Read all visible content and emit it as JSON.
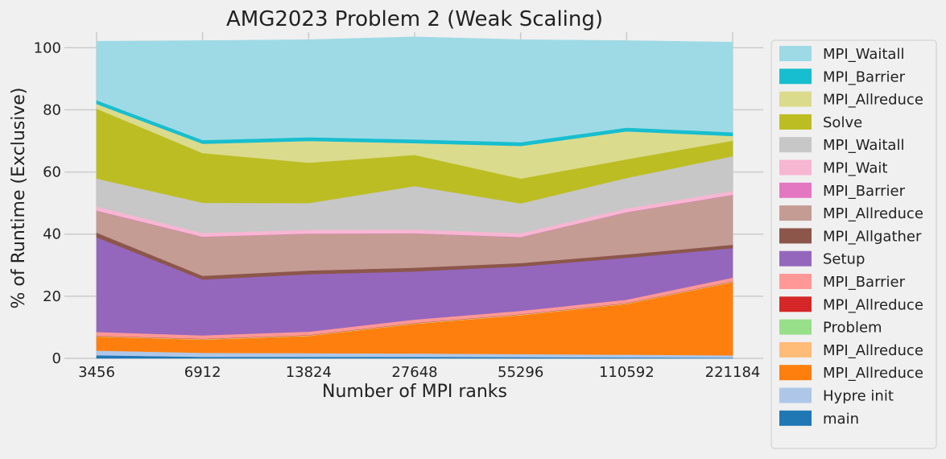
{
  "chart_data": {
    "type": "area",
    "stacked": true,
    "title": "AMG2023 Problem 2 (Weak Scaling)",
    "xlabel": "Number of MPI ranks",
    "ylabel": "% of Runtime (Exclusive)",
    "ylim": [
      0,
      105
    ],
    "yticks": [
      0,
      20,
      40,
      60,
      80,
      100
    ],
    "categories": [
      "3456",
      "6912",
      "13824",
      "27648",
      "55296",
      "110592",
      "221184"
    ],
    "grid": true,
    "legend_position": "outside-right",
    "series": [
      {
        "name": "main",
        "color": "#1f77b4",
        "values": [
          1.0,
          0.5,
          0.5,
          0.5,
          0.4,
          0.3,
          0.2
        ]
      },
      {
        "name": "Hypre init",
        "color": "#aec7e8",
        "values": [
          1.5,
          1.3,
          1.2,
          1.1,
          1.0,
          0.9,
          0.8
        ]
      },
      {
        "name": "MPI_Allreduce",
        "color": "#ff7f0e",
        "values": [
          4.5,
          4.2,
          5.5,
          9.5,
          12.5,
          16.3,
          23.5
        ]
      },
      {
        "name": "MPI_Allreduce",
        "color": "#ffbb78",
        "values": [
          0.1,
          0.1,
          0.1,
          0.1,
          0.1,
          0.1,
          0.1
        ]
      },
      {
        "name": "Problem",
        "color": "#98df8a",
        "values": [
          0.1,
          0.1,
          0.1,
          0.1,
          0.1,
          0.1,
          0.1
        ]
      },
      {
        "name": "MPI_Allreduce",
        "color": "#d62728",
        "values": [
          0.1,
          0.1,
          0.1,
          0.1,
          0.1,
          0.1,
          0.1
        ]
      },
      {
        "name": "MPI_Barrier",
        "color": "#ff9896",
        "values": [
          1.2,
          1.1,
          1.1,
          1.1,
          1.1,
          1.1,
          1.2
        ]
      },
      {
        "name": "Setup",
        "color": "#9467bd",
        "values": [
          30.5,
          18.0,
          18.5,
          15.5,
          14.3,
          13.5,
          9.5
        ]
      },
      {
        "name": "MPI_Allgather",
        "color": "#8c564b",
        "values": [
          1.5,
          1.2,
          1.2,
          1.2,
          1.1,
          1.1,
          1.1
        ]
      },
      {
        "name": "MPI_Allreduce",
        "color": "#c49c94",
        "values": [
          7.0,
          12.5,
          11.8,
          11.0,
          8.3,
          13.5,
          16.0
        ]
      },
      {
        "name": "MPI_Barrier",
        "color": "#e377c2",
        "values": [
          0.1,
          0.1,
          0.1,
          0.1,
          0.1,
          0.1,
          0.1
        ]
      },
      {
        "name": "MPI_Wait",
        "color": "#f7b6d2",
        "values": [
          1.3,
          1.2,
          1.2,
          1.2,
          1.2,
          1.2,
          1.2
        ]
      },
      {
        "name": "MPI_Waitall",
        "color": "#c7c7c7",
        "values": [
          9.0,
          9.7,
          8.6,
          14.0,
          9.6,
          9.8,
          11.2
        ]
      },
      {
        "name": "Solve",
        "color": "#bcbd22",
        "values": [
          22.5,
          16.0,
          13.0,
          10.0,
          8.0,
          6.0,
          5.0
        ]
      },
      {
        "name": "MPI_Allreduce",
        "color": "#dbdb8d",
        "values": [
          1.5,
          3.0,
          7.0,
          3.8,
          10.5,
          9.0,
          1.5
        ]
      },
      {
        "name": "MPI_Barrier",
        "color": "#17becf",
        "values": [
          1.2,
          1.2,
          1.2,
          1.2,
          1.2,
          1.2,
          1.2
        ]
      },
      {
        "name": "MPI_Waitall",
        "color": "#9edae5",
        "values": [
          19.0,
          32.0,
          31.4,
          33.0,
          33.0,
          28.0,
          29.0
        ]
      }
    ],
    "legend": {
      "entries": [
        {
          "label": "MPI_Waitall",
          "color": "#9edae5"
        },
        {
          "label": "MPI_Barrier",
          "color": "#17becf"
        },
        {
          "label": "MPI_Allreduce",
          "color": "#dbdb8d"
        },
        {
          "label": "Solve",
          "color": "#bcbd22"
        },
        {
          "label": "MPI_Waitall",
          "color": "#c7c7c7"
        },
        {
          "label": "MPI_Wait",
          "color": "#f7b6d2"
        },
        {
          "label": "MPI_Barrier",
          "color": "#e377c2"
        },
        {
          "label": "MPI_Allreduce",
          "color": "#c49c94"
        },
        {
          "label": "MPI_Allgather",
          "color": "#8c564b"
        },
        {
          "label": "Setup",
          "color": "#9467bd"
        },
        {
          "label": "MPI_Barrier",
          "color": "#ff9896"
        },
        {
          "label": "MPI_Allreduce",
          "color": "#d62728"
        },
        {
          "label": "Problem",
          "color": "#98df8a"
        },
        {
          "label": "MPI_Allreduce",
          "color": "#ffbb78"
        },
        {
          "label": "MPI_Allreduce",
          "color": "#ff7f0e"
        },
        {
          "label": "Hypre init",
          "color": "#aec7e8"
        },
        {
          "label": "main",
          "color": "#1f77b4"
        }
      ]
    }
  }
}
